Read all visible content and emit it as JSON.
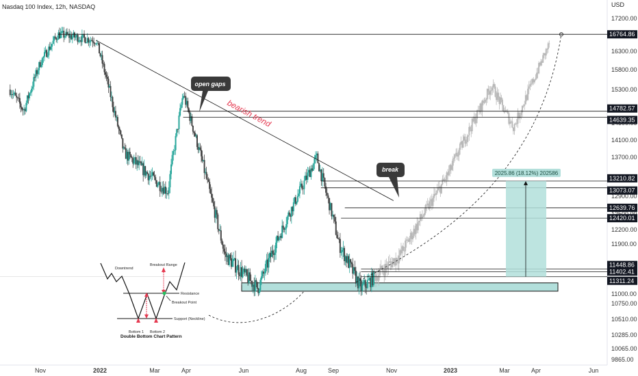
{
  "header": {
    "title": "Nasdaq 100 Index, 12h, NASDAQ",
    "currency": "USD"
  },
  "chart_data": {
    "type": "candlestick",
    "title": "Nasdaq 100 Index, 12h, NASDAQ",
    "y_axis_unit": "USD",
    "ylim": [
      9800,
      17500
    ],
    "y_ticks": [
      17200,
      16300,
      15800,
      15300,
      14500,
      14100,
      13700,
      12900,
      12500,
      12200,
      11900,
      11000,
      10750,
      10510,
      10285,
      10065,
      9865
    ],
    "y_tick_labels": [
      "17200.00",
      "16300.00",
      "15800.00",
      "15300.00",
      "14500.00",
      "14100.00",
      "13700.00",
      "12900.00",
      "12500.00",
      "12200.00",
      "11900.00",
      "11000.00",
      "10750.00",
      "10510.00",
      "10285.00",
      "10065.00",
      "9865.00"
    ],
    "x_ticks": [
      "Nov",
      "2022",
      "Mar",
      "Apr",
      "Jun",
      "Aug",
      "Sep",
      "Nov",
      "2023",
      "Mar",
      "Apr",
      "Jun"
    ],
    "x_tick_dates": [
      "2021-11-01",
      "2022-01-01",
      "2022-03-01",
      "2022-04-01",
      "2022-06-01",
      "2022-08-01",
      "2022-09-01",
      "2022-11-01",
      "2023-01-01",
      "2023-03-01",
      "2023-04-01",
      "2023-06-01"
    ],
    "price_levels": [
      16764.86,
      14782.57,
      14639.35,
      13210.82,
      13073.07,
      12639.76,
      12420.01,
      11448.86,
      11402.41,
      11311.24
    ],
    "price_level_labels": [
      "16764.86",
      "14782.57",
      "14639.35",
      "13210.82",
      "13073.07",
      "12639.76",
      "12420.01",
      "11448.86",
      "11402.41",
      "11311.24"
    ],
    "key_points": [
      {
        "date": "2021-11-19",
        "value": 16764.86
      },
      {
        "date": "2021-12-28",
        "value": 16600
      },
      {
        "date": "2022-01-27",
        "value": 13800
      },
      {
        "date": "2022-03-14",
        "value": 13000
      },
      {
        "date": "2022-03-29",
        "value": 15200
      },
      {
        "date": "2022-05-12",
        "value": 11700
      },
      {
        "date": "2022-06-16",
        "value": 11100
      },
      {
        "date": "2022-08-16",
        "value": 13700
      },
      {
        "date": "2022-09-07",
        "value": 11900
      },
      {
        "date": "2022-09-30",
        "value": 11100
      },
      {
        "date": "2022-11-10",
        "value": 11700
      },
      {
        "date": "2022-12-31",
        "value": 13400
      },
      {
        "date": "2023-02-15",
        "value": 15400
      },
      {
        "date": "2023-03-10",
        "value": 14400
      },
      {
        "date": "2023-04-15",
        "value": 16500
      }
    ],
    "annotations": {
      "trend_label": "bearish trend",
      "open_gaps": "open gaps",
      "break": "break",
      "measure": "2025.86 (18.12%) 202586",
      "support_zone": {
        "from": 11050,
        "to": 11200
      }
    },
    "inset": {
      "title": "Double Bottom Chart Pattern",
      "labels": {
        "downtrend": "Downtrend",
        "breakout_range": "Breakout Range",
        "resistance": "Resistance",
        "breakout_point": "Breakout Point",
        "support": "Support (Neckline)",
        "bottom1": "Bottom 1",
        "bottom2": "Bottom 2"
      }
    }
  },
  "colors": {
    "up": "#26a69a",
    "down": "#444444",
    "projection": "#b8b8b8",
    "zone": "#b2dfdb",
    "trend_text": "#e53950",
    "level_box": "#131722"
  }
}
